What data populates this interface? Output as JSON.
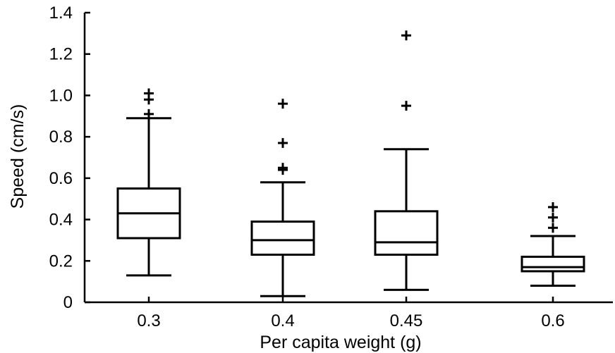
{
  "chart_data": {
    "type": "box",
    "title": "",
    "xlabel": "Per capita weight (g)",
    "ylabel": "Speed (cm/s)",
    "ylim": [
      0,
      1.4
    ],
    "yticks": [
      0,
      0.2,
      0.4,
      0.6,
      0.8,
      1.0,
      1.2,
      1.4
    ],
    "ytick_labels": [
      "0",
      "0.2",
      "0.4",
      "0.6",
      "0.8",
      "1.0",
      "1.2",
      "1.4"
    ],
    "categories": [
      "0.3",
      "0.4",
      "0.45",
      "0.6"
    ],
    "boxes": [
      {
        "category": "0.3",
        "whisker_low": 0.13,
        "q1": 0.31,
        "median": 0.43,
        "q3": 0.55,
        "whisker_high": 0.89,
        "outliers": [
          0.91,
          0.98,
          1.01
        ]
      },
      {
        "category": "0.4",
        "whisker_low": 0.03,
        "q1": 0.23,
        "median": 0.3,
        "q3": 0.39,
        "whisker_high": 0.58,
        "outliers": [
          0.64,
          0.65,
          0.77,
          0.96
        ]
      },
      {
        "category": "0.45",
        "whisker_low": 0.06,
        "q1": 0.23,
        "median": 0.29,
        "q3": 0.44,
        "whisker_high": 0.74,
        "outliers": [
          0.95,
          1.29
        ]
      },
      {
        "category": "0.6",
        "whisker_low": 0.08,
        "q1": 0.15,
        "median": 0.17,
        "q3": 0.22,
        "whisker_high": 0.32,
        "outliers": [
          0.36,
          0.41,
          0.46
        ]
      }
    ],
    "grid": false,
    "legend": "none"
  }
}
